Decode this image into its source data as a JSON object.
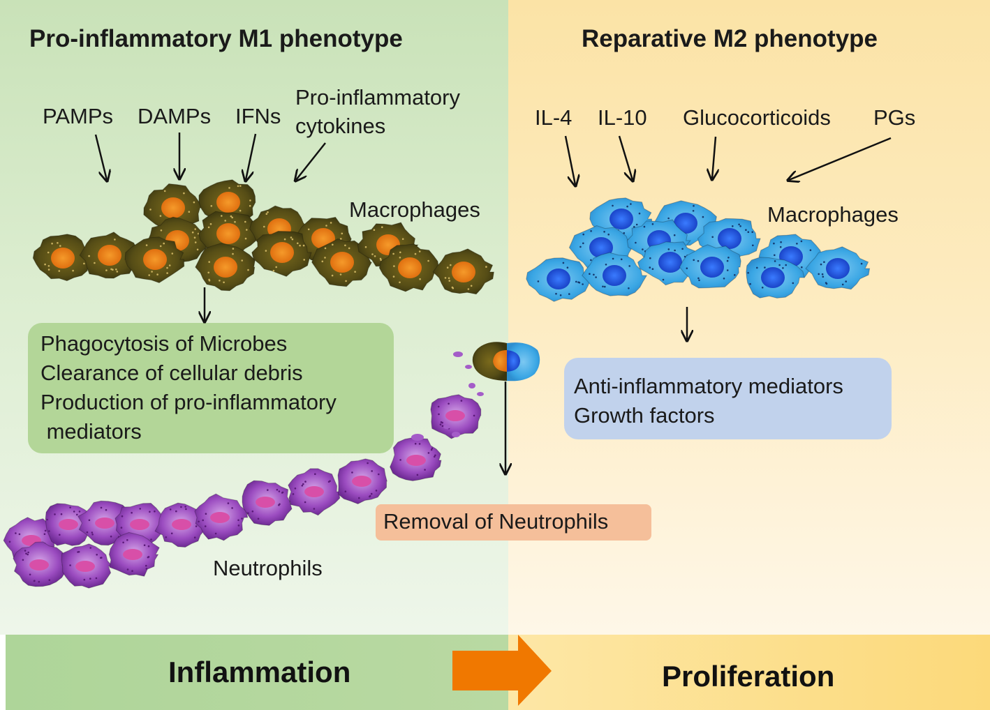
{
  "titles": {
    "left": "Pro-inflammatory M1 phenotype",
    "right": "Reparative M2 phenotype"
  },
  "stimuli": {
    "left": [
      "PAMPs",
      "DAMPs",
      "IFNs",
      "Pro-inflammatory",
      "cytokines"
    ],
    "right": [
      "IL-4",
      "IL-10",
      "Glucocorticoids",
      "PGs"
    ]
  },
  "cell_labels": {
    "macrophages_left": "Macrophages",
    "macrophages_right": "Macrophages",
    "neutrophils": "Neutrophils"
  },
  "boxes": {
    "m1_functions": [
      "Phagocytosis of Microbes",
      "Clearance of cellular debris",
      "Production of pro-inflammatory",
      " mediators"
    ],
    "m2_functions": [
      "Anti-inflammatory mediators",
      "Growth factors"
    ],
    "removal": "Removal of Neutrophils"
  },
  "bands": {
    "left": "Inflammation",
    "right": "Proliferation"
  },
  "colors": {
    "m1_cell": "#4f4a16",
    "m1_nucleus": "#f08a1c",
    "m2_cell": "#3aa6e4",
    "m2_nucleus": "#1f55e0",
    "neutrophil": "#8e3ab0",
    "neutrophil_nucleus": "#e05aa8",
    "phase_arrow": "#f07800"
  }
}
